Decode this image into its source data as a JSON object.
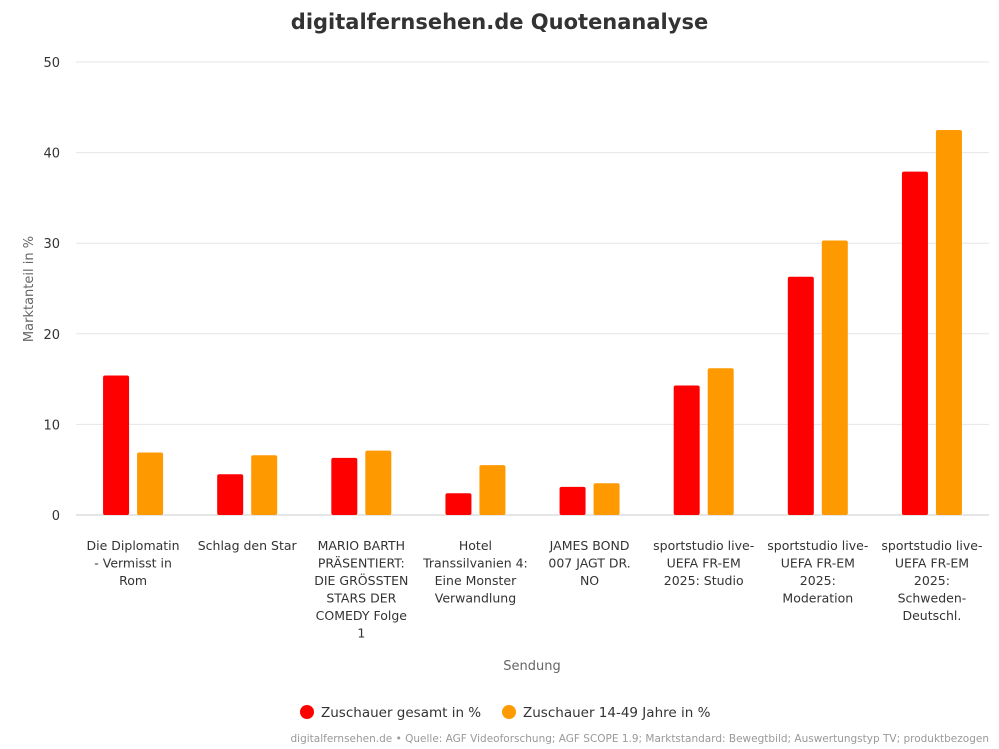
{
  "colors": {
    "series_0": "#ff0000",
    "series_1": "#ff9900"
  },
  "source_text": "digitalfernsehen.de • Quelle: AGF Videoforschung; AGF SCOPE 1.9; Marktstandard: Bewegtbild; Auswertungstyp TV; produktbezogen",
  "chart_data": {
    "type": "bar",
    "title": "digitalfernsehen.de Quotenanalyse",
    "xlabel": "Sendung",
    "ylabel": "Marktanteil in %",
    "ylim": [
      0,
      50
    ],
    "yticks": [
      0,
      10,
      20,
      30,
      40,
      50
    ],
    "grid": true,
    "legend_position": "bottom-center",
    "categories": [
      "Die Diplomatin - Vermisst in Rom",
      "Schlag den Star",
      "MARIO BARTH PRÄSENTIERT: DIE GRÖSSTEN STARS DER COMEDY Folge 1",
      "Hotel Transsilvanien 4: Eine Monster Verwandlung",
      "JAMES BOND 007 JAGT DR. NO",
      "sportstudio live- UEFA FR-EM 2025: Studio",
      "sportstudio live- UEFA FR-EM 2025: Moderation",
      "sportstudio live- UEFA FR-EM 2025: Schweden-Deutschl."
    ],
    "category_lines": [
      [
        "Die Diplomatin",
        "- Vermisst in",
        "Rom"
      ],
      [
        "Schlag den Star"
      ],
      [
        "MARIO BARTH",
        "PRÄSENTIERT:",
        "DIE GRÖSSTEN",
        "STARS DER",
        "COMEDY Folge",
        "1"
      ],
      [
        "Hotel",
        "Transsilvanien 4:",
        "Eine Monster",
        "Verwandlung"
      ],
      [
        "JAMES BOND",
        "007 JAGT DR.",
        "NO"
      ],
      [
        "sportstudio live-",
        "UEFA FR-EM",
        "2025: Studio"
      ],
      [
        "sportstudio live-",
        "UEFA FR-EM",
        "2025:",
        "Moderation"
      ],
      [
        "sportstudio live-",
        "UEFA FR-EM",
        "2025:",
        "Schweden-",
        "Deutschl."
      ]
    ],
    "series": [
      {
        "name": "Zuschauer gesamt in %",
        "values": [
          15.4,
          4.5,
          6.3,
          2.4,
          3.1,
          14.3,
          26.3,
          37.9
        ]
      },
      {
        "name": "Zuschauer 14-49 Jahre in %",
        "values": [
          6.9,
          6.6,
          7.1,
          5.5,
          3.5,
          16.2,
          30.3,
          42.5
        ]
      }
    ]
  }
}
